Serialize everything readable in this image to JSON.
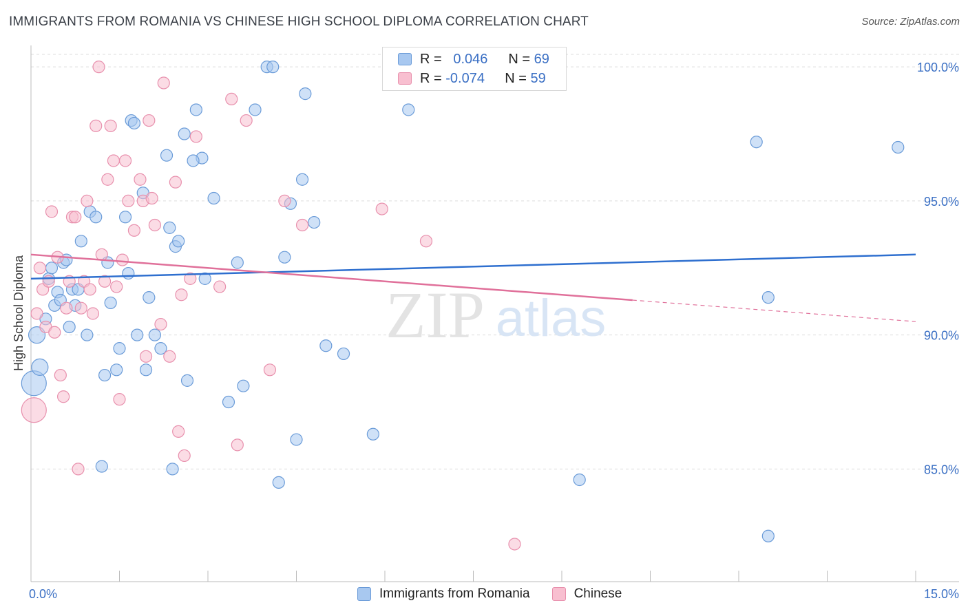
{
  "title": "IMMIGRANTS FROM ROMANIA VS CHINESE HIGH SCHOOL DIPLOMA CORRELATION CHART",
  "source": "Source: ZipAtlas.com",
  "watermark": {
    "zip": "ZIP",
    "atlas": "atlas"
  },
  "legend": {
    "r_label": "R =",
    "n_label": "N =",
    "rows": [
      {
        "name": "Immigrants from Romania",
        "r": "0.046",
        "n": "69",
        "color": "#a8c8f0",
        "stroke": "#6a9bd8"
      },
      {
        "name": "Chinese",
        "r": "-0.074",
        "n": "59",
        "color": "#f8bfd0",
        "stroke": "#e890ad"
      }
    ]
  },
  "chart_data": {
    "type": "scatter",
    "title": "IMMIGRANTS FROM ROMANIA VS CHINESE HIGH SCHOOL DIPLOMA CORRELATION CHART",
    "xlabel": "",
    "ylabel": "High School Diploma",
    "xlim": [
      0,
      15
    ],
    "ylim": [
      80.8,
      100.8
    ],
    "x_tick_labels": [
      "0.0%",
      "15.0%"
    ],
    "y_ticks": [
      85,
      90,
      95,
      100
    ],
    "y_tick_labels": [
      "85.0%",
      "90.0%",
      "95.0%",
      "100.0%"
    ],
    "grid": true,
    "legend_position": "top-center",
    "series": [
      {
        "name": "Immigrants from Romania",
        "color": "#a8c8f0",
        "stroke": "#6a9bd8",
        "trend": {
          "x": [
            0,
            15
          ],
          "y": [
            92.1,
            93.0
          ],
          "color": "#2e6fcf"
        },
        "points": [
          [
            0.05,
            88.2
          ],
          [
            0.15,
            88.8
          ],
          [
            0.1,
            90.0
          ],
          [
            0.25,
            90.6
          ],
          [
            0.3,
            92.1
          ],
          [
            0.35,
            92.5
          ],
          [
            0.4,
            91.1
          ],
          [
            0.45,
            91.6
          ],
          [
            0.55,
            92.7
          ],
          [
            0.6,
            92.8
          ],
          [
            0.7,
            91.7
          ],
          [
            0.75,
            91.1
          ],
          [
            0.85,
            93.5
          ],
          [
            0.95,
            90.0
          ],
          [
            1.0,
            94.6
          ],
          [
            1.1,
            94.4
          ],
          [
            1.2,
            85.1
          ],
          [
            1.25,
            88.5
          ],
          [
            1.3,
            92.7
          ],
          [
            1.35,
            91.2
          ],
          [
            1.45,
            88.7
          ],
          [
            1.5,
            89.5
          ],
          [
            1.6,
            94.4
          ],
          [
            1.65,
            92.3
          ],
          [
            1.7,
            98.0
          ],
          [
            1.75,
            97.9
          ],
          [
            1.8,
            90.0
          ],
          [
            1.9,
            95.3
          ],
          [
            1.95,
            88.7
          ],
          [
            2.0,
            91.4
          ],
          [
            2.1,
            90.0
          ],
          [
            2.2,
            89.5
          ],
          [
            2.3,
            96.7
          ],
          [
            2.35,
            94.0
          ],
          [
            2.4,
            85.0
          ],
          [
            2.45,
            93.3
          ],
          [
            2.5,
            93.5
          ],
          [
            2.6,
            97.5
          ],
          [
            2.65,
            88.3
          ],
          [
            2.8,
            98.4
          ],
          [
            2.9,
            96.6
          ],
          [
            2.95,
            92.1
          ],
          [
            3.1,
            95.1
          ],
          [
            3.35,
            87.5
          ],
          [
            3.5,
            92.7
          ],
          [
            3.6,
            88.1
          ],
          [
            3.8,
            98.4
          ],
          [
            4.0,
            100.0
          ],
          [
            4.1,
            100.0
          ],
          [
            4.2,
            84.5
          ],
          [
            4.3,
            92.9
          ],
          [
            4.4,
            94.9
          ],
          [
            4.5,
            86.1
          ],
          [
            4.6,
            95.8
          ],
          [
            4.65,
            99.0
          ],
          [
            4.8,
            94.2
          ],
          [
            5.0,
            89.6
          ],
          [
            5.3,
            89.3
          ],
          [
            5.8,
            86.3
          ],
          [
            6.4,
            98.4
          ],
          [
            0.8,
            91.7
          ],
          [
            0.65,
            90.3
          ],
          [
            0.5,
            91.3
          ],
          [
            9.3,
            84.6
          ],
          [
            12.3,
            97.2
          ],
          [
            12.5,
            91.4
          ],
          [
            12.5,
            82.5
          ],
          [
            14.7,
            97.0
          ],
          [
            2.75,
            96.5
          ]
        ]
      },
      {
        "name": "Chinese",
        "color": "#f8bfd0",
        "stroke": "#e890ad",
        "trend": {
          "x": [
            0,
            10.2
          ],
          "y": [
            93.0,
            91.3
          ],
          "dashed_to": [
            15,
            90.5
          ],
          "color": "#e0709a"
        },
        "points": [
          [
            0.05,
            87.2
          ],
          [
            0.1,
            90.8
          ],
          [
            0.15,
            92.5
          ],
          [
            0.2,
            91.7
          ],
          [
            0.25,
            90.3
          ],
          [
            0.3,
            92.0
          ],
          [
            0.35,
            94.6
          ],
          [
            0.4,
            90.1
          ],
          [
            0.45,
            92.9
          ],
          [
            0.5,
            88.5
          ],
          [
            0.55,
            87.7
          ],
          [
            0.6,
            91.0
          ],
          [
            0.65,
            92.0
          ],
          [
            0.7,
            94.4
          ],
          [
            0.75,
            94.4
          ],
          [
            0.8,
            85.0
          ],
          [
            0.85,
            91.0
          ],
          [
            0.9,
            92.0
          ],
          [
            0.95,
            95.0
          ],
          [
            1.0,
            91.7
          ],
          [
            1.05,
            90.8
          ],
          [
            1.1,
            97.8
          ],
          [
            1.15,
            100.0
          ],
          [
            1.2,
            93.0
          ],
          [
            1.25,
            92.0
          ],
          [
            1.35,
            97.8
          ],
          [
            1.4,
            96.5
          ],
          [
            1.45,
            91.8
          ],
          [
            1.5,
            87.6
          ],
          [
            1.55,
            92.8
          ],
          [
            1.6,
            96.5
          ],
          [
            1.65,
            95.0
          ],
          [
            1.75,
            93.9
          ],
          [
            1.85,
            95.8
          ],
          [
            1.9,
            95.0
          ],
          [
            1.95,
            89.2
          ],
          [
            2.0,
            98.0
          ],
          [
            2.05,
            95.1
          ],
          [
            2.1,
            94.1
          ],
          [
            2.2,
            90.4
          ],
          [
            2.25,
            99.4
          ],
          [
            2.35,
            89.2
          ],
          [
            2.45,
            95.7
          ],
          [
            2.5,
            86.4
          ],
          [
            2.55,
            91.5
          ],
          [
            2.6,
            85.5
          ],
          [
            2.7,
            92.1
          ],
          [
            2.8,
            97.4
          ],
          [
            3.2,
            91.8
          ],
          [
            3.4,
            98.8
          ],
          [
            3.5,
            85.9
          ],
          [
            3.65,
            98.0
          ],
          [
            4.05,
            88.7
          ],
          [
            4.3,
            95.0
          ],
          [
            4.6,
            94.1
          ],
          [
            5.95,
            94.7
          ],
          [
            6.7,
            93.5
          ],
          [
            8.2,
            82.2
          ],
          [
            1.3,
            95.8
          ]
        ]
      }
    ]
  }
}
